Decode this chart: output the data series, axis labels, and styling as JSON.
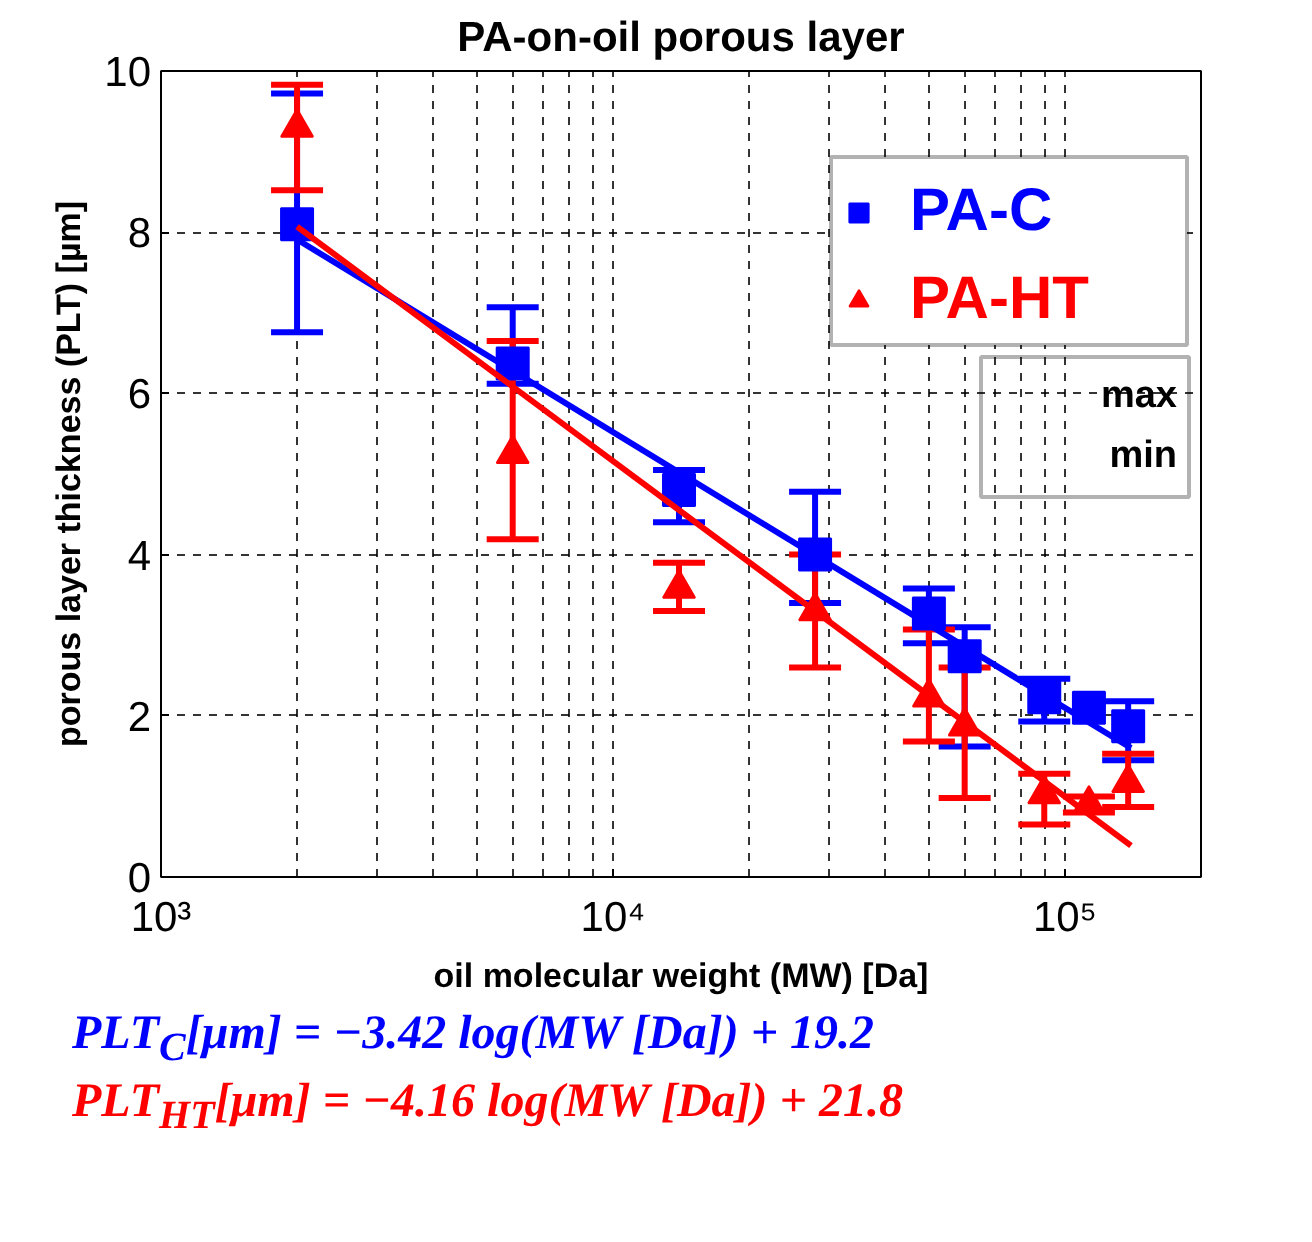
{
  "chart_data": {
    "type": "scatter",
    "title": "PA-on-oil porous layer",
    "xlabel": "oil molecular weight (MW) [Da]",
    "ylabel": "porous layer thickness (PLT) [µm]",
    "log": "x",
    "xlim": [
      1000,
      200000
    ],
    "xticks": [
      {
        "value": 1000,
        "label": "10³"
      },
      {
        "value": 10000,
        "label": "10⁴"
      },
      {
        "value": 100000,
        "label": "10⁵"
      }
    ],
    "ylim": [
      0,
      10
    ],
    "yticks": [
      0,
      2,
      4,
      6,
      8,
      10
    ],
    "grid": true,
    "legend": "top right",
    "series": [
      {
        "name": "PA-C",
        "color": "#0000ff",
        "marker": "square",
        "x": [
          2000,
          6000,
          14000,
          28000,
          50000,
          60000,
          90000,
          113000,
          138000
        ],
        "values": [
          8.1,
          6.37,
          4.8,
          4.0,
          3.27,
          2.74,
          2.23,
          2.1,
          1.87
        ],
        "errors": [
          [
            6.76,
            9.72
          ],
          [
            6.12,
            7.07
          ],
          [
            4.4,
            5.05
          ],
          [
            3.4,
            4.78
          ],
          [
            2.9,
            3.58
          ],
          [
            1.62,
            3.1
          ],
          [
            1.93,
            2.46
          ],
          null,
          [
            1.45,
            2.18
          ]
        ]
      },
      {
        "name": "PA-HT",
        "color": "#ff0000",
        "marker": "triangle",
        "x": [
          2000,
          6000,
          14000,
          28000,
          50000,
          60000,
          90000,
          113000,
          138000
        ],
        "values": [
          9.3,
          5.25,
          3.58,
          3.3,
          2.23,
          1.87,
          1.03,
          0.9,
          1.17
        ],
        "errors": [
          [
            8.52,
            9.83
          ],
          [
            4.19,
            6.65
          ],
          [
            3.3,
            3.9
          ],
          0.7,
          [
            1.68,
            3.07
          ],
          [
            0.98,
            2.6
          ],
          [
            0.65,
            1.28
          ],
          [
            0.8,
            1.0
          ],
          [
            0.87,
            1.53
          ]
        ]
      },
      {
        "type": "line",
        "color": "#0000ff",
        "x": [
          2000,
          140000
        ],
        "values": [
          7.91,
          1.6
        ]
      },
      {
        "type": "line",
        "color": "#ff0000",
        "x": [
          2000,
          140000
        ],
        "values": [
          8.07,
          0.39
        ]
      }
    ],
    "annotations": [
      "max",
      "min",
      "PLT$_{C}$[μm] = −3.42 log(MW [Da]) + 19.2",
      "PLT$_{HT}$[μm] = −4.16 log(MW [Da]) + 21.8"
    ]
  }
}
